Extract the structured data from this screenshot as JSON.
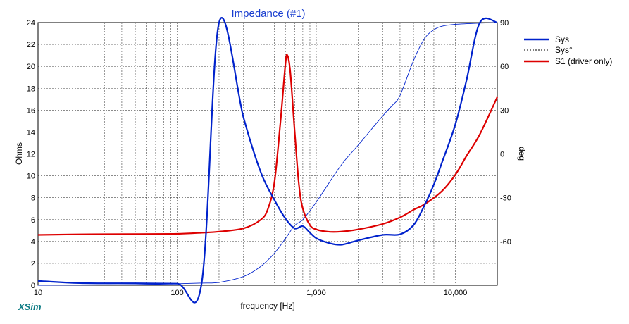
{
  "chart_data": {
    "type": "line",
    "title": "Impedance (#1)",
    "xlabel": "frequency [Hz]",
    "ylabel": "Ohms",
    "y2label": "deg",
    "xscale": "log",
    "xlim": [
      10,
      20000
    ],
    "ylim": [
      0,
      24
    ],
    "y2lim": [
      -90,
      90
    ],
    "grid": true,
    "legend_position": "right",
    "x_tick_labels": [
      "10",
      "100",
      "1,000",
      "10,000"
    ],
    "x_ticks": [
      10,
      100,
      1000,
      10000
    ],
    "y_ticks": [
      0,
      2,
      4,
      6,
      8,
      10,
      12,
      14,
      16,
      18,
      20,
      22,
      24
    ],
    "y2_ticks": [
      -60,
      -30,
      0,
      30,
      60,
      90
    ],
    "series": [
      {
        "name": "Sys",
        "axis": "left",
        "color": "#0022cc",
        "style": "thick-solid",
        "x": [
          10,
          20,
          50,
          100,
          150,
          200,
          300,
          400,
          500,
          600,
          700,
          800,
          900,
          1000,
          1200,
          1500,
          2000,
          3000,
          4000,
          5000,
          6000,
          7000,
          8000,
          10000,
          12000,
          15000,
          20000
        ],
        "y": [
          0.4,
          0.2,
          0.18,
          0.15,
          0.2,
          24,
          15.3,
          10.3,
          7.8,
          6.1,
          5.2,
          5.4,
          4.8,
          4.3,
          3.9,
          3.7,
          4.1,
          4.6,
          4.65,
          5.5,
          7.3,
          9.2,
          11.2,
          14.7,
          18.7,
          24,
          24
        ]
      },
      {
        "name": "Sys°",
        "axis": "right",
        "color": "#0022cc",
        "style": "thin-solid",
        "x": [
          10,
          50,
          100,
          150,
          200,
          300,
          400,
          500,
          600,
          700,
          800,
          1000,
          1500,
          2000,
          3000,
          3500,
          4000,
          5000,
          6000,
          7000,
          8000,
          10000,
          15000,
          20000
        ],
        "y": [
          -90,
          -89.6,
          -89,
          -88.5,
          -88,
          -84,
          -77,
          -68,
          -58,
          -49,
          -45,
          -33,
          -8,
          6,
          26,
          33,
          40,
          64,
          79,
          85,
          87.5,
          88.8,
          89.6,
          90
        ]
      },
      {
        "name": "S1 (driver only)",
        "axis": "left",
        "color": "#dd0000",
        "style": "thick-solid",
        "x": [
          10,
          20,
          50,
          100,
          150,
          200,
          300,
          400,
          450,
          500,
          550,
          600,
          620,
          650,
          700,
          750,
          800,
          900,
          1000,
          1200,
          1500,
          2000,
          3000,
          4000,
          5000,
          6000,
          8000,
          10000,
          12000,
          15000,
          20000
        ],
        "y": [
          4.6,
          4.65,
          4.68,
          4.7,
          4.8,
          4.9,
          5.2,
          6,
          7,
          9.4,
          14.6,
          20.2,
          21,
          19.5,
          14,
          9.2,
          7,
          5.5,
          5.1,
          4.9,
          4.9,
          5.1,
          5.6,
          6.2,
          6.9,
          7.4,
          8.6,
          10.1,
          11.8,
          13.8,
          17.2
        ]
      }
    ]
  },
  "legend": [
    {
      "label": "Sys",
      "color": "#0022cc",
      "style": "solid"
    },
    {
      "label": "Sys°",
      "color": "#000000",
      "style": "dashed"
    },
    {
      "label": "S1 (driver only)",
      "color": "#dd0000",
      "style": "solid"
    }
  ],
  "app_label": "XSim"
}
